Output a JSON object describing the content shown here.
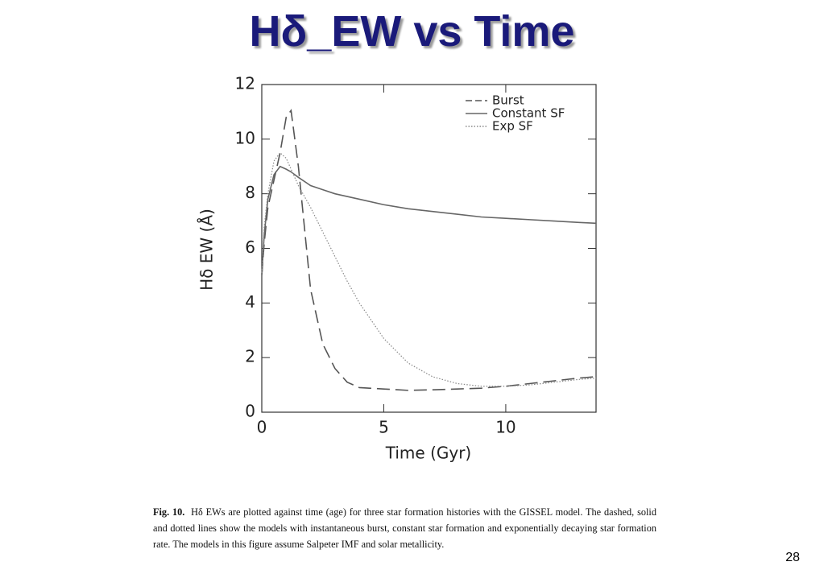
{
  "slide": {
    "title": "Hδ_EW vs Time",
    "caption_label": "Fig. 10.",
    "caption_text": "Hδ EWs are plotted against time (age) for three star formation histories with the GISSEL model. The dashed, solid and dotted lines show the models with instantaneous burst, constant star formation and exponentially decaying star formation rate. The models in this figure assume Salpeter IMF and solar metallicity.",
    "page_number": "28"
  },
  "chart_data": {
    "type": "line",
    "x_label": "Time (Gyr)",
    "y_label": "Hδ   EW (Å)",
    "x": [
      0,
      0.1,
      0.25,
      0.5,
      0.75,
      1,
      1.2,
      1.5,
      2,
      2.5,
      3,
      3.5,
      4,
      5,
      6,
      7,
      8,
      9,
      10,
      11,
      12,
      13,
      13.7
    ],
    "series": [
      {
        "name": "Burst",
        "color": "#555555",
        "dash": "dashed",
        "values": [
          5,
          6.2,
          7.5,
          8.5,
          9.5,
          10.8,
          11.05,
          9,
          4.5,
          2.5,
          1.6,
          1.1,
          0.9,
          0.85,
          0.8,
          0.82,
          0.85,
          0.88,
          0.95,
          1.05,
          1.15,
          1.25,
          1.3
        ]
      },
      {
        "name": "Constant SF",
        "color": "#666666",
        "dash": "solid",
        "values": [
          5,
          6.5,
          7.8,
          8.7,
          9.0,
          8.9,
          8.8,
          8.6,
          8.3,
          8.15,
          8.0,
          7.9,
          7.8,
          7.6,
          7.45,
          7.35,
          7.25,
          7.15,
          7.1,
          7.05,
          7.0,
          6.95,
          6.92
        ]
      },
      {
        "name": "Exp SF",
        "color": "#888888",
        "dash": "dotted",
        "values": [
          5,
          6.8,
          8.0,
          9.2,
          9.5,
          9.3,
          8.9,
          8.3,
          7.5,
          6.6,
          5.7,
          4.8,
          4.0,
          2.7,
          1.8,
          1.3,
          1.05,
          0.95,
          0.95,
          1.0,
          1.1,
          1.2,
          1.25
        ]
      }
    ],
    "xlim": [
      0,
      13.7
    ],
    "ylim": [
      0,
      12
    ],
    "xticks": [
      0,
      5,
      10
    ],
    "yticks": [
      0,
      2,
      4,
      6,
      8,
      10,
      12
    ],
    "legend": "upper right",
    "grid": false
  }
}
